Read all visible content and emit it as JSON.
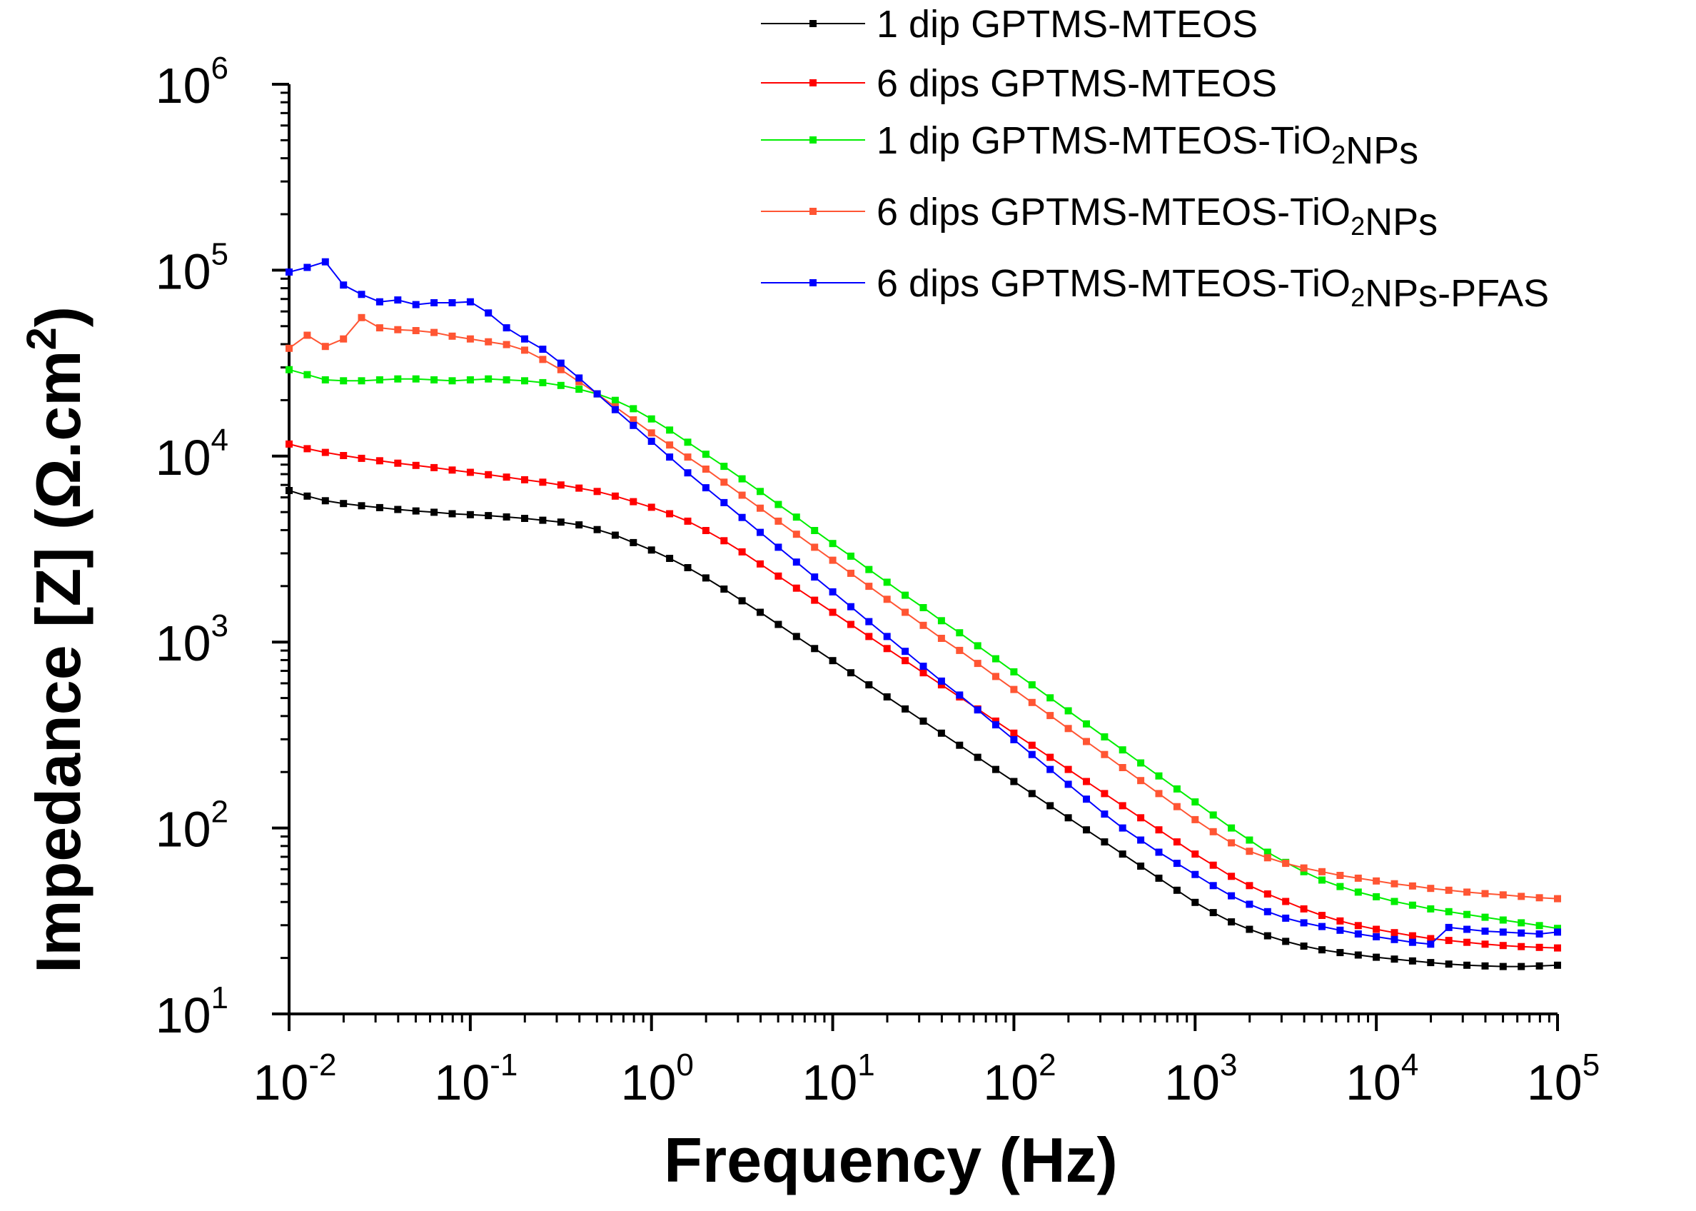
{
  "chart_data": {
    "type": "line",
    "title": "",
    "xlabel": "Frequency (Hz)",
    "ylabel_main": "Impedance [Z] (Ω.cm",
    "ylabel_sup": "2",
    "ylabel_close": ")",
    "xscale": "log",
    "yscale": "log",
    "xlim": [
      0.01,
      100000
    ],
    "ylim": [
      10,
      1000000
    ],
    "legend_position": "top-right",
    "x_ticks": [
      {
        "base": "10",
        "exp": "-2"
      },
      {
        "base": "10",
        "exp": "-1"
      },
      {
        "base": "10",
        "exp": "0"
      },
      {
        "base": "10",
        "exp": "1"
      },
      {
        "base": "10",
        "exp": "2"
      },
      {
        "base": "10",
        "exp": "3"
      },
      {
        "base": "10",
        "exp": "4"
      },
      {
        "base": "10",
        "exp": "5"
      }
    ],
    "y_ticks": [
      {
        "base": "10",
        "exp": "1"
      },
      {
        "base": "10",
        "exp": "2"
      },
      {
        "base": "10",
        "exp": "3"
      },
      {
        "base": "10",
        "exp": "4"
      },
      {
        "base": "10",
        "exp": "5"
      },
      {
        "base": "10",
        "exp": "6"
      }
    ],
    "x_log": [
      -2.0,
      -1.9,
      -1.8,
      -1.7,
      -1.6,
      -1.5,
      -1.4,
      -1.3,
      -1.2,
      -1.1,
      -1.0,
      -0.9,
      -0.8,
      -0.7,
      -0.6,
      -0.5,
      -0.4,
      -0.3,
      -0.2,
      -0.1,
      0.0,
      0.1,
      0.2,
      0.3,
      0.4,
      0.5,
      0.6,
      0.7,
      0.8,
      0.9,
      1.0,
      1.1,
      1.2,
      1.3,
      1.4,
      1.5,
      1.6,
      1.7,
      1.8,
      1.9,
      2.0,
      2.1,
      2.2,
      2.3,
      2.4,
      2.5,
      2.6,
      2.7,
      2.8,
      2.9,
      3.0,
      3.1,
      3.2,
      3.3,
      3.4,
      3.5,
      3.6,
      3.7,
      3.8,
      3.9,
      4.0,
      4.1,
      4.2,
      4.3,
      4.4,
      4.5,
      4.6,
      4.7,
      4.8,
      4.9,
      5.0
    ],
    "series": [
      {
        "name": "1 dip GPTMS-MTEOS",
        "legend_parts": [
          {
            "t": "1 dip GPTMS-MTEOS"
          }
        ],
        "color": "#000000",
        "y_log": [
          3.815,
          3.785,
          3.76,
          3.745,
          3.733,
          3.723,
          3.713,
          3.705,
          3.698,
          3.69,
          3.685,
          3.68,
          3.673,
          3.665,
          3.655,
          3.645,
          3.63,
          3.605,
          3.575,
          3.535,
          3.495,
          3.45,
          3.4,
          3.345,
          3.285,
          3.222,
          3.16,
          3.095,
          3.03,
          2.965,
          2.9,
          2.835,
          2.77,
          2.705,
          2.64,
          2.575,
          2.51,
          2.445,
          2.38,
          2.315,
          2.25,
          2.185,
          2.12,
          2.055,
          1.99,
          1.925,
          1.86,
          1.795,
          1.73,
          1.665,
          1.6,
          1.545,
          1.495,
          1.455,
          1.42,
          1.39,
          1.365,
          1.345,
          1.33,
          1.317,
          1.305,
          1.295,
          1.285,
          1.276,
          1.268,
          1.262,
          1.258,
          1.255,
          1.255,
          1.258,
          1.262
        ]
      },
      {
        "name": "6 dips GPTMS-MTEOS",
        "legend_parts": [
          {
            "t": "6 dips GPTMS-MTEOS"
          }
        ],
        "color": "#ff0000",
        "y_log": [
          4.065,
          4.04,
          4.02,
          4.003,
          3.988,
          3.975,
          3.962,
          3.95,
          3.938,
          3.925,
          3.913,
          3.9,
          3.887,
          3.873,
          3.86,
          3.845,
          3.828,
          3.81,
          3.785,
          3.755,
          3.725,
          3.69,
          3.65,
          3.6,
          3.545,
          3.485,
          3.42,
          3.355,
          3.29,
          3.225,
          3.16,
          3.095,
          3.03,
          2.965,
          2.9,
          2.835,
          2.77,
          2.705,
          2.64,
          2.575,
          2.51,
          2.445,
          2.38,
          2.315,
          2.25,
          2.185,
          2.12,
          2.055,
          1.99,
          1.925,
          1.86,
          1.8,
          1.74,
          1.69,
          1.645,
          1.605,
          1.565,
          1.53,
          1.5,
          1.475,
          1.455,
          1.437,
          1.42,
          1.405,
          1.395,
          1.385,
          1.375,
          1.368,
          1.362,
          1.358,
          1.355
        ]
      },
      {
        "name": "1 dip GPTMS-MTEOS-TiO2NPs",
        "legend_parts": [
          {
            "t": "1 dip GPTMS-MTEOS-TiO"
          },
          {
            "t": "2",
            "sub": true
          },
          {
            "t": "NPs"
          }
        ],
        "color": "#00ee00",
        "y_log": [
          4.465,
          4.438,
          4.41,
          4.405,
          4.405,
          4.41,
          4.415,
          4.415,
          4.41,
          4.405,
          4.41,
          4.415,
          4.41,
          4.405,
          4.395,
          4.38,
          4.36,
          4.335,
          4.3,
          4.255,
          4.2,
          4.14,
          4.075,
          4.01,
          3.945,
          3.878,
          3.81,
          3.74,
          3.672,
          3.6,
          3.53,
          3.462,
          3.39,
          3.322,
          3.252,
          3.185,
          3.115,
          3.05,
          2.98,
          2.91,
          2.84,
          2.77,
          2.7,
          2.63,
          2.56,
          2.49,
          2.42,
          2.35,
          2.28,
          2.21,
          2.14,
          2.07,
          2.0,
          1.935,
          1.87,
          1.815,
          1.765,
          1.72,
          1.685,
          1.655,
          1.63,
          1.605,
          1.585,
          1.565,
          1.55,
          1.535,
          1.52,
          1.505,
          1.49,
          1.475,
          1.46
        ]
      },
      {
        "name": "6 dips GPTMS-MTEOS-TiO2NPs",
        "legend_parts": [
          {
            "t": "6 dips GPTMS-MTEOS-TiO"
          },
          {
            "t": "2",
            "sub": true
          },
          {
            "t": "NPs"
          }
        ],
        "color": "#ff5533",
        "y_log": [
          4.58,
          4.65,
          4.59,
          4.63,
          4.745,
          4.69,
          4.68,
          4.675,
          4.665,
          4.645,
          4.63,
          4.615,
          4.6,
          4.57,
          4.52,
          4.465,
          4.4,
          4.335,
          4.265,
          4.195,
          4.125,
          4.06,
          3.995,
          3.93,
          3.86,
          3.79,
          3.72,
          3.65,
          3.58,
          3.51,
          3.44,
          3.37,
          3.3,
          3.23,
          3.16,
          3.09,
          3.02,
          2.955,
          2.885,
          2.815,
          2.745,
          2.675,
          2.605,
          2.535,
          2.465,
          2.395,
          2.325,
          2.255,
          2.185,
          2.115,
          2.045,
          1.98,
          1.92,
          1.875,
          1.84,
          1.81,
          1.785,
          1.765,
          1.745,
          1.73,
          1.715,
          1.7,
          1.688,
          1.675,
          1.665,
          1.655,
          1.647,
          1.64,
          1.632,
          1.625,
          1.62
        ]
      },
      {
        "name": "6 dips GPTMS-MTEOS-TiO2NPs-PFAS",
        "legend_parts": [
          {
            "t": "6 dips GPTMS-MTEOS-TiO"
          },
          {
            "t": "2",
            "sub": true
          },
          {
            "t": "NPs-PFAS"
          }
        ],
        "color": "#0000ff",
        "y_log": [
          4.99,
          5.015,
          5.045,
          4.92,
          4.87,
          4.83,
          4.84,
          4.815,
          4.825,
          4.825,
          4.83,
          4.77,
          4.69,
          4.63,
          4.575,
          4.5,
          4.42,
          4.335,
          4.25,
          4.165,
          4.08,
          3.995,
          3.91,
          3.83,
          3.75,
          3.67,
          3.59,
          3.51,
          3.43,
          3.35,
          3.27,
          3.19,
          3.11,
          3.03,
          2.95,
          2.87,
          2.79,
          2.715,
          2.635,
          2.555,
          2.475,
          2.395,
          2.315,
          2.235,
          2.155,
          2.075,
          2.0,
          1.935,
          1.87,
          1.81,
          1.75,
          1.69,
          1.635,
          1.59,
          1.55,
          1.515,
          1.49,
          1.47,
          1.45,
          1.43,
          1.415,
          1.4,
          1.385,
          1.375,
          1.465,
          1.455,
          1.445,
          1.44,
          1.435,
          1.43,
          1.44
        ]
      }
    ]
  }
}
